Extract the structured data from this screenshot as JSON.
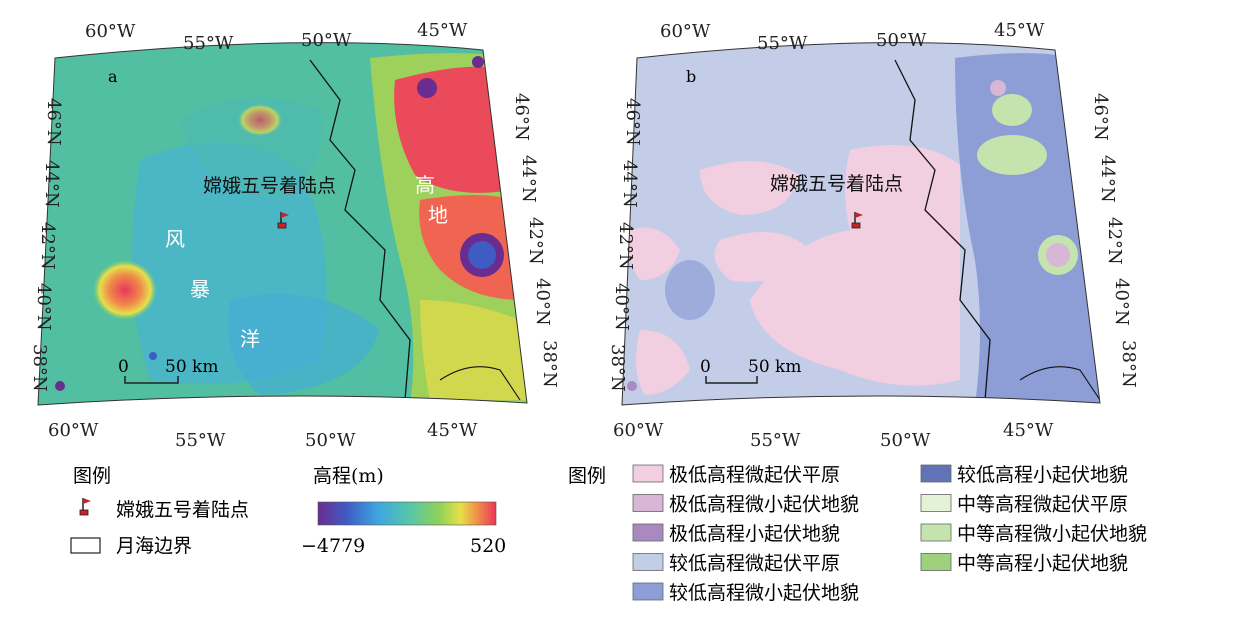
{
  "map_a": {
    "panel_label": "a",
    "top_lon_labels": [
      "60°W",
      "55°W",
      "50°W",
      "45°W"
    ],
    "bottom_lon_labels": [
      "60°W",
      "55°W",
      "50°W",
      "45°W"
    ],
    "lat_labels": [
      "46°N",
      "44°N",
      "42°N",
      "40°N",
      "38°N"
    ],
    "landing_label": "嫦娥五号着陆点",
    "region_chars": [
      "风",
      "暴",
      "洋"
    ],
    "highland_chars": [
      "高",
      "地"
    ],
    "scale_zero": "0",
    "scale_label": "50 km"
  },
  "map_b": {
    "panel_label": "b",
    "top_lon_labels": [
      "60°W",
      "55°W",
      "50°W",
      "45°W"
    ],
    "bottom_lon_labels": [
      "60°W",
      "55°W",
      "50°W",
      "45°W"
    ],
    "lat_labels": [
      "46°N",
      "44°N",
      "42°N",
      "40°N",
      "38°N"
    ],
    "landing_label": "嫦娥五号着陆点",
    "scale_zero": "0",
    "scale_label": "50 km"
  },
  "legend_a": {
    "title": "图例",
    "items": [
      "嫦娥五号着陆点",
      "月海边界"
    ],
    "colorbar_title": "高程(m)",
    "colorbar_min": "−4779",
    "colorbar_max": "520",
    "colorbar_colors": [
      "#6a2d8f",
      "#3f5bc4",
      "#3fa7e0",
      "#58c7a6",
      "#8fd05a",
      "#e6e04a",
      "#f08a4a",
      "#e8385a"
    ]
  },
  "legend_b": {
    "title": "图例",
    "items": [
      {
        "label": "极低高程微起伏平原",
        "color": "#f2cfe0"
      },
      {
        "label": "极低高程微小起伏地貌",
        "color": "#d8b6d6"
      },
      {
        "label": "极低高程小起伏地貌",
        "color": "#a98ac0"
      },
      {
        "label": "较低高程微起伏平原",
        "color": "#c3cde8"
      },
      {
        "label": "较低高程微小起伏地貌",
        "color": "#8d9ed6"
      },
      {
        "label": "较低高程小起伏地貌",
        "color": "#5f73b6"
      },
      {
        "label": "中等高程微起伏平原",
        "color": "#e4f2d6"
      },
      {
        "label": "中等高程微小起伏地貌",
        "color": "#c5e4ad"
      },
      {
        "label": "中等高程小起伏地貌",
        "color": "#9fd07e"
      }
    ]
  }
}
